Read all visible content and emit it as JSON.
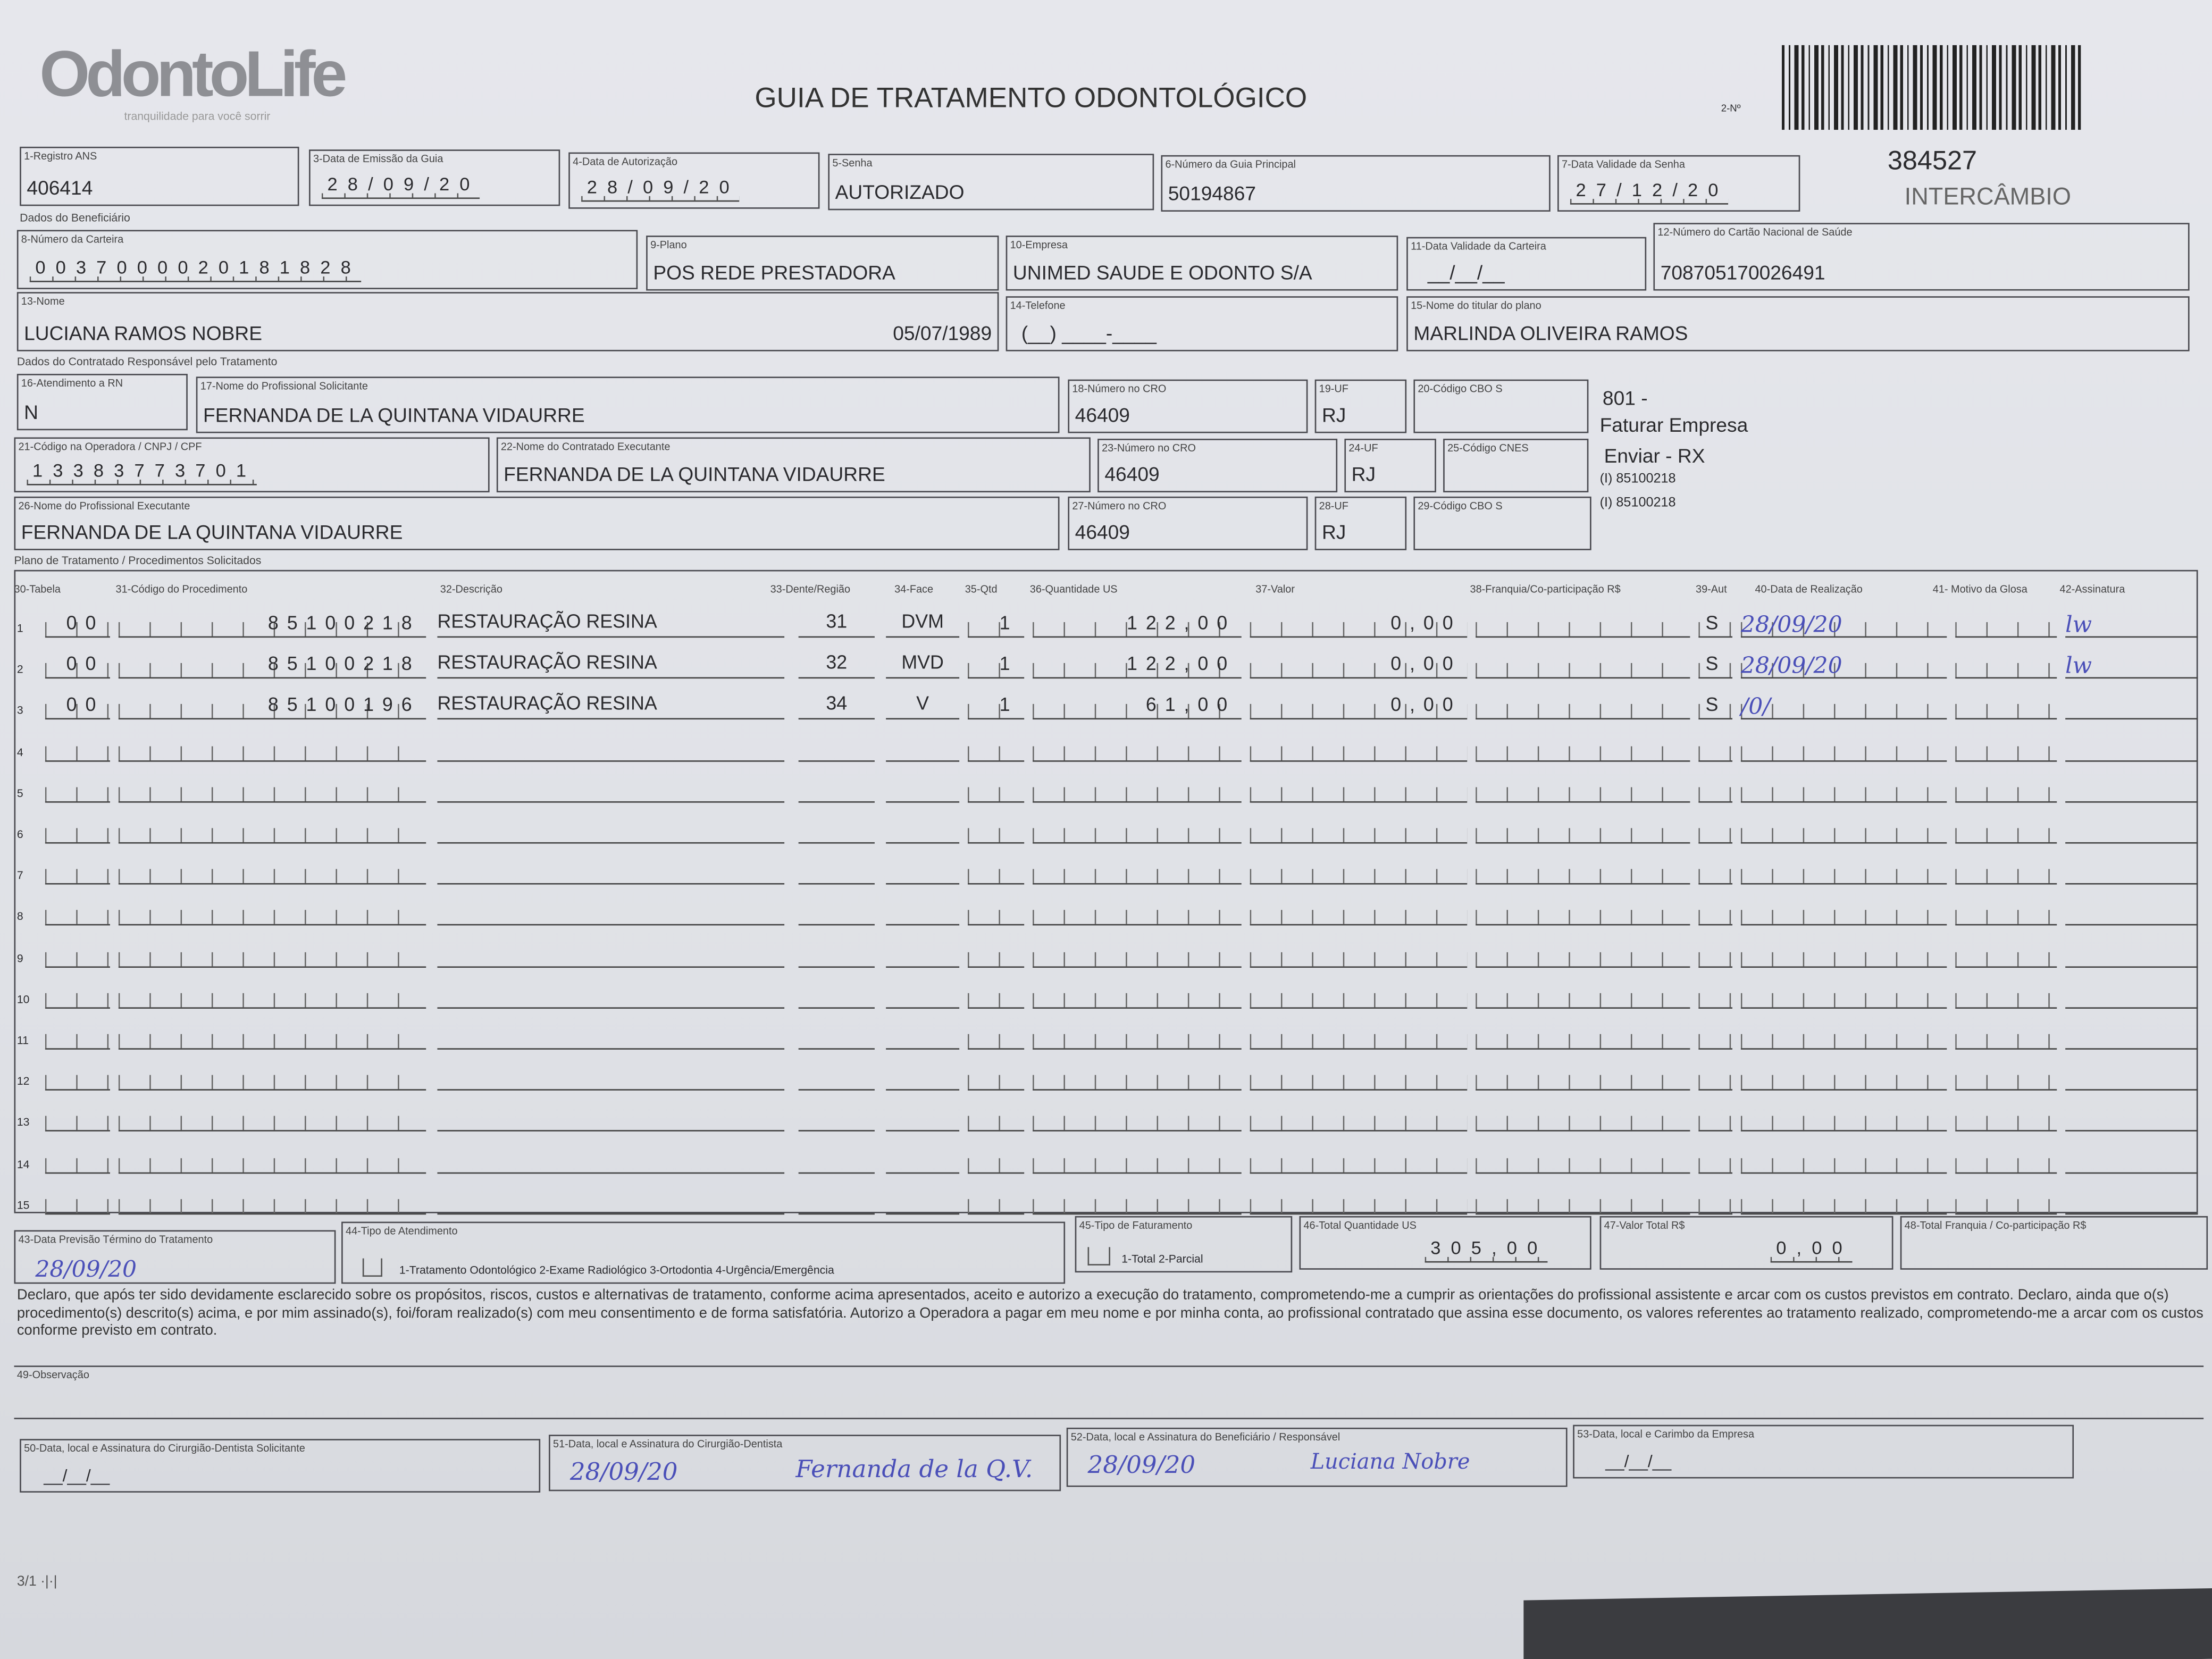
{
  "header": {
    "logo": "OdontoLife",
    "tagline": "tranquilidade para você sorrir",
    "title": "GUIA DE TRATAMENTO ODONTOLÓGICO",
    "guide_no_label": "2-Nº",
    "guide_number": "384527",
    "intercambio": "INTERCÂMBIO"
  },
  "fields": {
    "f1": {
      "label": "1-Registro ANS",
      "value": "406414"
    },
    "f3": {
      "label": "3-Data de Emissão da Guia",
      "value": "28/09/20"
    },
    "f4": {
      "label": "4-Data de Autorização",
      "value": "28/09/20"
    },
    "f5": {
      "label": "5-Senha",
      "value": "AUTORIZADO"
    },
    "f6": {
      "label": "6-Número da Guia Principal",
      "value": "50194867"
    },
    "f7": {
      "label": "7-Data Validade da Senha",
      "value": "27/12/20"
    },
    "f8": {
      "label": "8-Número da Carteira",
      "value": "0037000020181828"
    },
    "f9": {
      "label": "9-Plano",
      "value": "POS REDE PRESTADORA"
    },
    "f10": {
      "label": "10-Empresa",
      "value": "UNIMED SAUDE E ODONTO S/A"
    },
    "f11": {
      "label": "11-Data Validade da Carteira",
      "value": "__/__/__"
    },
    "f12": {
      "label": "12-Número do Cartão Nacional de Saúde",
      "value": "708705170026491"
    },
    "f13": {
      "label": "13-Nome",
      "value": "LUCIANA RAMOS NOBRE",
      "birth": "05/07/1989"
    },
    "f14": {
      "label": "14-Telefone",
      "value": "(__) ____-____"
    },
    "f15": {
      "label": "15-Nome do titular do plano",
      "value": "MARLINDA OLIVEIRA RAMOS"
    },
    "f16": {
      "label": "16-Atendimento a RN",
      "value": "N"
    },
    "f17": {
      "label": "17-Nome do Profissional Solicitante",
      "value": "FERNANDA DE LA QUINTANA VIDAURRE"
    },
    "f18": {
      "label": "18-Número no CRO",
      "value": "46409"
    },
    "f19": {
      "label": "19-UF",
      "value": "RJ"
    },
    "f20": {
      "label": "20-Código CBO S",
      "value": ""
    },
    "f21": {
      "label": "21-Código na Operadora / CNPJ / CPF",
      "value": "13383773701"
    },
    "f22": {
      "label": "22-Nome do Contratado Executante",
      "value": "FERNANDA DE LA QUINTANA VIDAURRE"
    },
    "f23": {
      "label": "23-Número no CRO",
      "value": "46409"
    },
    "f24": {
      "label": "24-UF",
      "value": "RJ"
    },
    "f25": {
      "label": "25-Código CNES",
      "value": ""
    },
    "f26": {
      "label": "26-Nome do Profissional Executante",
      "value": "FERNANDA DE LA QUINTANA VIDAURRE"
    },
    "f27": {
      "label": "27-Número no CRO",
      "value": "46409"
    },
    "f28": {
      "label": "28-UF",
      "value": "RJ"
    },
    "f29": {
      "label": "29-Código CBO S",
      "value": ""
    }
  },
  "sections": {
    "beneficiario": "Dados do Beneficiário",
    "contratado": "Dados do Contratado Responsável pelo Tratamento",
    "plano": "Plano de Tratamento / Procedimentos Solicitados"
  },
  "side_notes": [
    "801 -",
    "Faturar Empresa",
    "Enviar - RX",
    "(I) 85100218",
    "(I) 85100218"
  ],
  "table": {
    "headers": [
      "30-Tabela",
      "31-Código do Procedimento",
      "32-Descrição",
      "33-Dente/Região",
      "34-Face",
      "35-Qtd",
      "36-Quantidade US",
      "37-Valor",
      "38-Franquia/Co-participação R$",
      "39-Aut",
      "40-Data de Realização",
      "41- Motivo da Glosa",
      "42-Assinatura"
    ],
    "rows": [
      {
        "n": "1",
        "tabela": "00",
        "codigo": "85100218",
        "descricao": "RESTAURAÇÃO RESINA",
        "dente": "31",
        "face": "DVM",
        "qtd": "1",
        "us": "122,00",
        "valor": "0,00",
        "franquia": "",
        "aut": "S",
        "data": "28/09/20",
        "glosa": "",
        "assinatura": "lw"
      },
      {
        "n": "2",
        "tabela": "00",
        "codigo": "85100218",
        "descricao": "RESTAURAÇÃO RESINA",
        "dente": "32",
        "face": "MVD",
        "qtd": "1",
        "us": "122,00",
        "valor": "0,00",
        "franquia": "",
        "aut": "S",
        "data": "28/09/20",
        "glosa": "",
        "assinatura": "lw"
      },
      {
        "n": "3",
        "tabela": "00",
        "codigo": "85100196",
        "descricao": "RESTAURAÇÃO RESINA",
        "dente": "34",
        "face": "V",
        "qtd": "1",
        "us": "61,00",
        "valor": "0,00",
        "franquia": "",
        "aut": "S",
        "data": "/0/",
        "glosa": "",
        "assinatura": ""
      },
      {
        "n": "4"
      },
      {
        "n": "5"
      },
      {
        "n": "6"
      },
      {
        "n": "7"
      },
      {
        "n": "8"
      },
      {
        "n": "9"
      },
      {
        "n": "10"
      },
      {
        "n": "11"
      },
      {
        "n": "12"
      },
      {
        "n": "13"
      },
      {
        "n": "14"
      },
      {
        "n": "15"
      }
    ]
  },
  "totals": {
    "f43": {
      "label": "43-Data Previsão Término do Tratamento",
      "value": "28/09/20"
    },
    "f44": {
      "label": "44-Tipo de Atendimento",
      "options": "1-Tratamento Odontológico  2-Exame Radiológico  3-Ortodontia  4-Urgência/Emergência"
    },
    "f45": {
      "label": "45-Tipo de Faturamento",
      "options": "1-Total  2-Parcial"
    },
    "f46": {
      "label": "46-Total Quantidade US",
      "value": "305,00"
    },
    "f47": {
      "label": "47-Valor Total R$",
      "value": "0,00"
    },
    "f48": {
      "label": "48-Total Franquia / Co-participação R$",
      "value": ""
    }
  },
  "declaration": "Declaro, que após ter sido devidamente esclarecido sobre os propósitos, riscos, custos e alternativas de tratamento, conforme acima apresentados, aceito e autorizo a execução do tratamento, comprometendo-me a cumprir as orientações do profissional assistente e arcar com os custos previstos em contrato. Declaro, ainda que o(s) procedimento(s) descrito(s) acima, e por mim assinado(s), foi/foram realizado(s) com meu consentimento e de forma satisfatória. Autorizo a Operadora a pagar em meu nome e por minha conta, ao profissional contratado que assina esse documento, os valores referentes ao tratamento realizado, comprometendo-me a arcar com os custos conforme previsto em contrato.",
  "obs": {
    "label": "49-Observação",
    "value": ""
  },
  "signatures": {
    "f50": {
      "label": "50-Data, local e Assinatura do Cirurgião-Dentista Solicitante",
      "date": "__/__/__"
    },
    "f51": {
      "label": "51-Data, local e Assinatura do Cirurgião-Dentista",
      "date": "28/09/20",
      "signature": "Fernanda de la Q.V."
    },
    "f52": {
      "label": "52-Data, local e Assinatura do Beneficiário / Responsável",
      "date": "28/09/20",
      "signature": "Luciana Nobre"
    },
    "f53": {
      "label": "53-Data, local e Carimbo da Empresa",
      "date": "__/__/__"
    }
  },
  "footer": "3/1 ·|·|",
  "colors": {
    "ink": "#2b2b2e",
    "pen": "#4a4fb8",
    "paper": "#e2e4e9"
  }
}
